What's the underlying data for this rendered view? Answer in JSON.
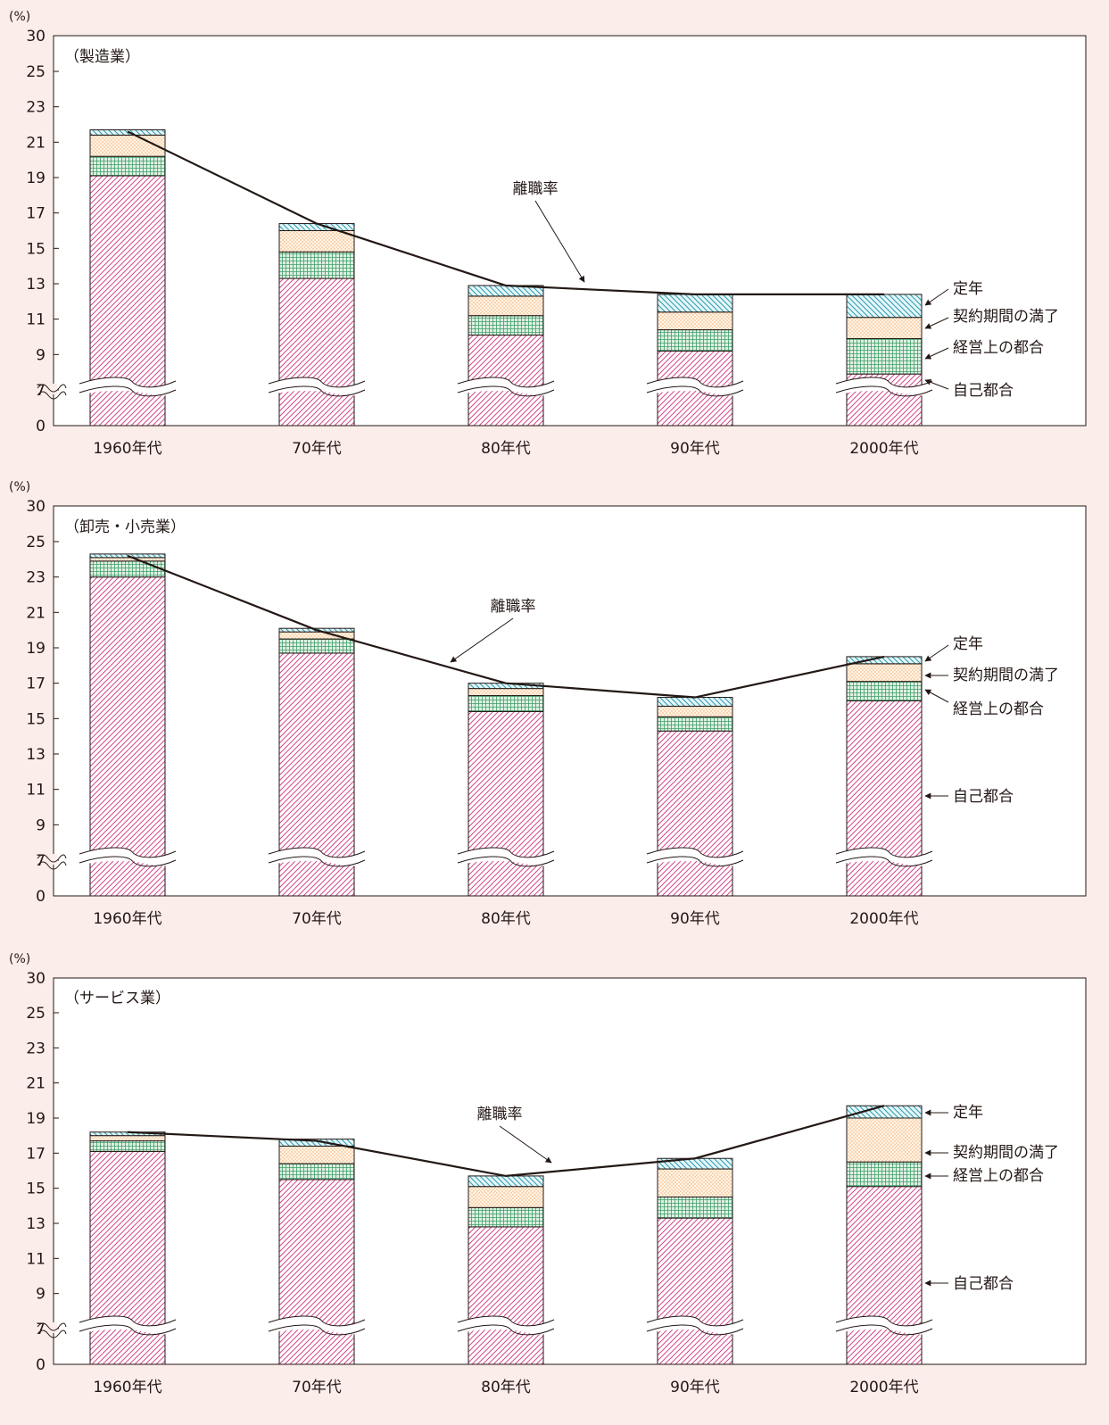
{
  "chart_data": [
    {
      "type": "bar",
      "stacked": true,
      "title": "（製造業）",
      "unit": "(%)",
      "categories": [
        "1960年代",
        "70年代",
        "80年代",
        "90年代",
        "2000年代"
      ],
      "yticks": [
        "30",
        "25",
        "23",
        "21",
        "19",
        "17",
        "15",
        "13",
        "11",
        "9",
        "7",
        "0"
      ],
      "axis_break": true,
      "series": [
        {
          "name": "自己都合",
          "values": [
            19.1,
            13.3,
            10.1,
            9.2,
            7.9
          ]
        },
        {
          "name": "経営上の都合",
          "values": [
            1.1,
            1.5,
            1.1,
            1.2,
            2.0
          ]
        },
        {
          "name": "契約期間の満了",
          "values": [
            1.2,
            1.2,
            1.1,
            1.0,
            1.2
          ]
        },
        {
          "name": "定年",
          "values": [
            0.3,
            0.4,
            0.6,
            1.0,
            1.3
          ]
        }
      ],
      "line": {
        "name": "離職率",
        "values": [
          21.6,
          16.4,
          12.9,
          12.4,
          12.4
        ]
      }
    },
    {
      "type": "bar",
      "stacked": true,
      "title": "（卸売・小売業）",
      "unit": "(%)",
      "categories": [
        "1960年代",
        "70年代",
        "80年代",
        "90年代",
        "2000年代"
      ],
      "yticks": [
        "30",
        "25",
        "23",
        "21",
        "19",
        "17",
        "15",
        "13",
        "11",
        "9",
        "7",
        "0"
      ],
      "axis_break": true,
      "series": [
        {
          "name": "自己都合",
          "values": [
            23.0,
            18.7,
            15.4,
            14.3,
            16.0
          ]
        },
        {
          "name": "経営上の都合",
          "values": [
            0.9,
            0.8,
            0.9,
            0.8,
            1.1
          ]
        },
        {
          "name": "契約期間の満了",
          "values": [
            0.2,
            0.4,
            0.4,
            0.6,
            1.0
          ]
        },
        {
          "name": "定年",
          "values": [
            0.2,
            0.2,
            0.3,
            0.5,
            0.4
          ]
        }
      ],
      "line": {
        "name": "離職率",
        "values": [
          24.2,
          20.0,
          17.0,
          16.2,
          18.5
        ]
      }
    },
    {
      "type": "bar",
      "stacked": true,
      "title": "（サービス業）",
      "unit": "(%)",
      "categories": [
        "1960年代",
        "70年代",
        "80年代",
        "90年代",
        "2000年代"
      ],
      "yticks": [
        "30",
        "25",
        "23",
        "21",
        "19",
        "17",
        "15",
        "13",
        "11",
        "9",
        "7",
        "0"
      ],
      "axis_break": true,
      "series": [
        {
          "name": "自己都合",
          "values": [
            17.1,
            15.5,
            12.8,
            13.3,
            15.1
          ]
        },
        {
          "name": "経営上の都合",
          "values": [
            0.6,
            0.9,
            1.1,
            1.2,
            1.4
          ]
        },
        {
          "name": "契約期間の満了",
          "values": [
            0.3,
            1.0,
            1.2,
            1.6,
            2.5
          ]
        },
        {
          "name": "定年",
          "values": [
            0.2,
            0.4,
            0.6,
            0.6,
            0.7
          ]
        }
      ],
      "line": {
        "name": "離職率",
        "values": [
          18.2,
          17.7,
          15.7,
          16.7,
          19.7
        ]
      }
    }
  ],
  "colors": {
    "self": "#d4488d",
    "business": "#3f9e69",
    "contract": "#f2a867",
    "retire": "#2a9bb0",
    "line": "#231815",
    "background": "#fbede9"
  }
}
